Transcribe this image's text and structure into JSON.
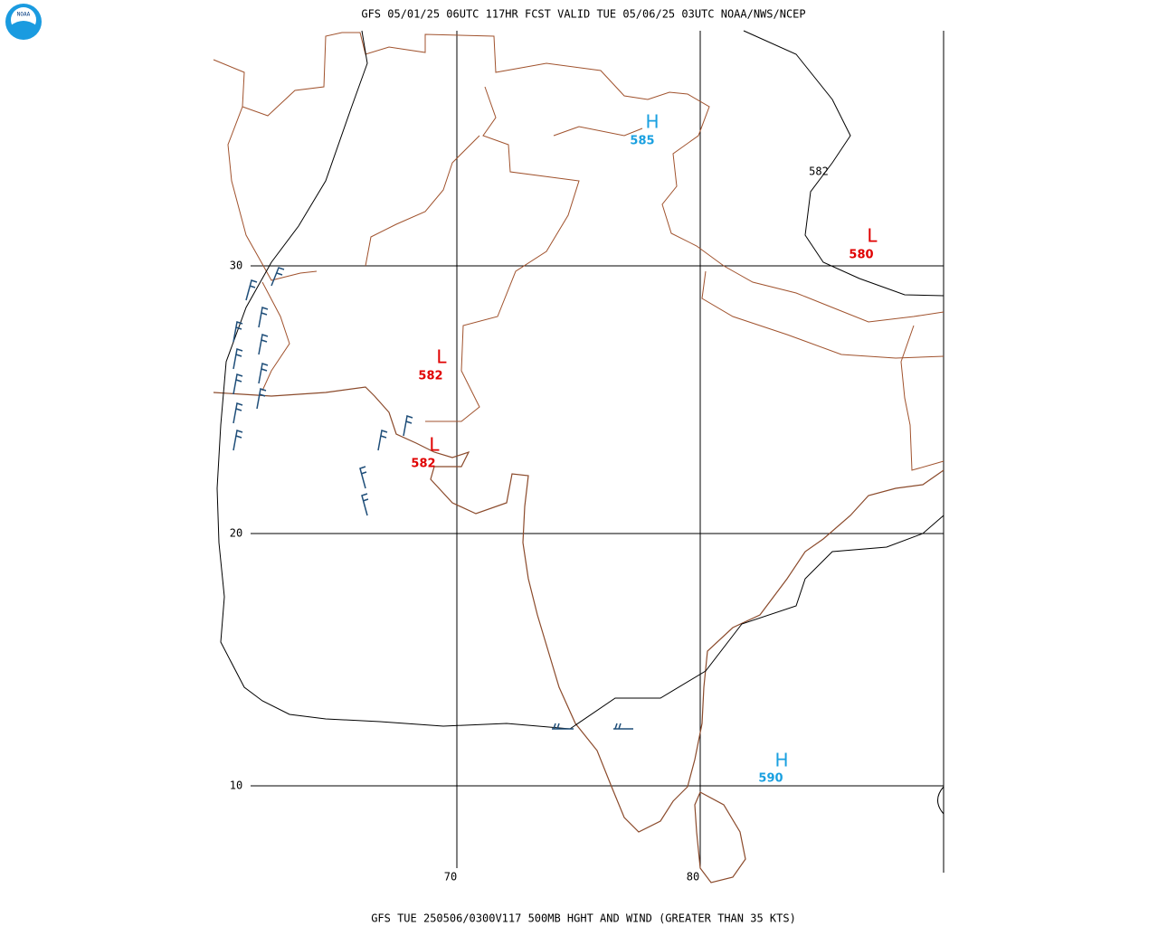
{
  "logo": {
    "text": "NOAA"
  },
  "header": {
    "title": "GFS 05/01/25 06UTC 117HR FCST VALID TUE 05/06/25 03UTC NOAA/NWS/NCEP"
  },
  "map": {
    "lat_labels": [
      "30",
      "20",
      "10"
    ],
    "lon_labels": [
      "70",
      "80"
    ],
    "contour_labels": [
      "582"
    ],
    "systems": [
      {
        "symbol": "H",
        "value": "585"
      },
      {
        "symbol": "L",
        "value": "580"
      },
      {
        "symbol": "L",
        "value": "582"
      },
      {
        "symbol": "L",
        "value": "582"
      },
      {
        "symbol": "H",
        "value": "590"
      }
    ]
  },
  "footer": {
    "caption": "GFS TUE 250506/0300V117 500MB HGHT AND WIND (GREATER THAN 35 KTS)"
  }
}
